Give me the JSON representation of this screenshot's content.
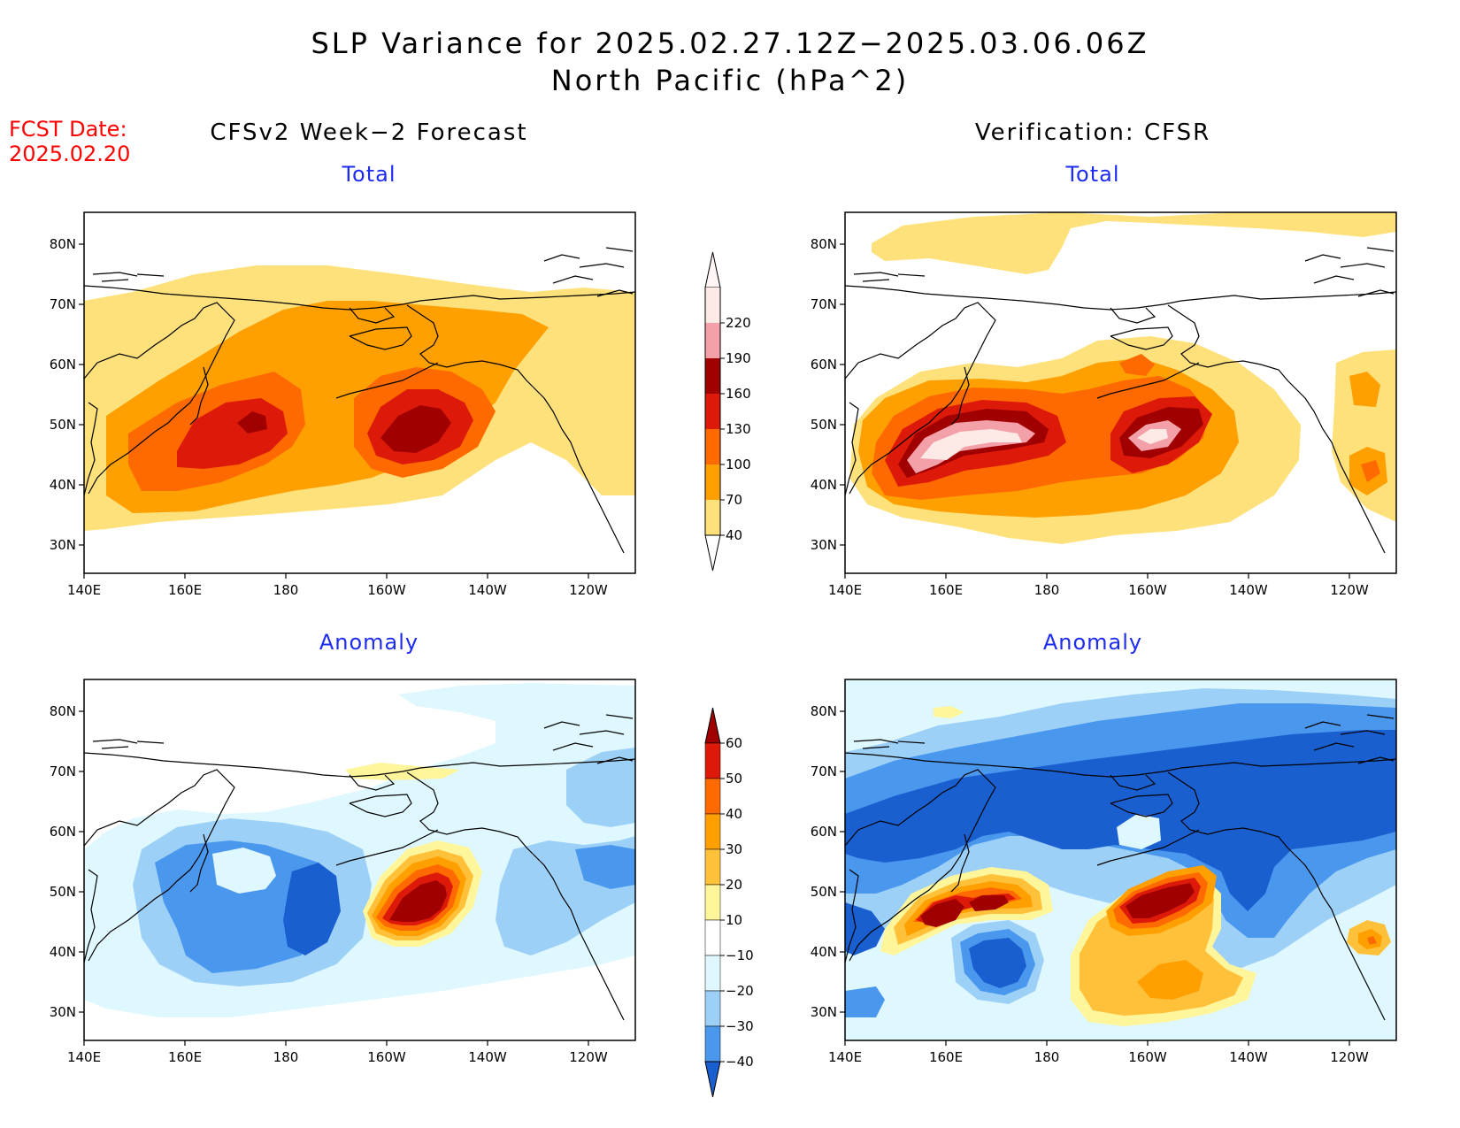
{
  "title": {
    "line1": "SLP Variance for 2025.02.27.12Z−2025.03.06.06Z",
    "line2": "North Pacific (hPa^2)"
  },
  "fcst": {
    "line1": "FCST Date:",
    "line2": "2025.02.20"
  },
  "columns": {
    "left": "CFSv2 Week−2 Forecast",
    "right": "Verification: CFSR"
  },
  "panels": {
    "total": "Total",
    "anomaly": "Anomaly"
  },
  "axes": {
    "lon": [
      "140E",
      "160E",
      "180",
      "160W",
      "140W",
      "120W"
    ],
    "lat": [
      "80N",
      "70N",
      "60N",
      "50N",
      "40N",
      "30N"
    ]
  },
  "colorbars": {
    "total": {
      "labels": [
        "220",
        "190",
        "160",
        "130",
        "100",
        "70",
        "40"
      ],
      "colors": [
        "#fde9e6",
        "#f3a0a8",
        "#a00000",
        "#dd1a0a",
        "#ff6a00",
        "#ff9f00",
        "#fee17a"
      ]
    },
    "anomaly": {
      "labels": [
        "60",
        "50",
        "40",
        "30",
        "20",
        "10",
        "−10",
        "−20",
        "−30",
        "−40"
      ],
      "colors": [
        "#a00000",
        "#dd1a0a",
        "#ff6a00",
        "#ff9f00",
        "#ffc03a",
        "#fff59a",
        "#ffffff",
        "#dff8ff",
        "#9dd0f7",
        "#4a97ee",
        "#1a5fd0"
      ]
    }
  }
}
